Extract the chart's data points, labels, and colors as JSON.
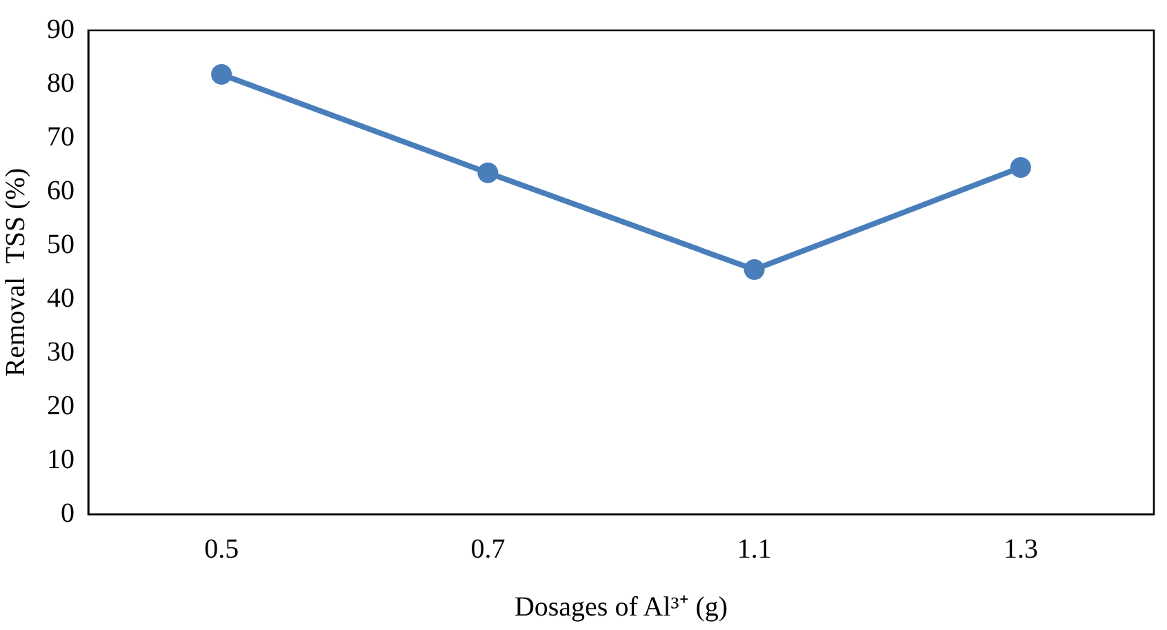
{
  "chart_data": {
    "type": "line",
    "xlabel": "Dosages of Al³⁺ (g)",
    "ylabel": "Removal  TSS (%)",
    "categories": [
      "0.5",
      "0.7",
      "1.1",
      "1.3"
    ],
    "series": [
      {
        "color": "#4a7ebb",
        "values": [
          81.8,
          63.5,
          45.5,
          64.5
        ]
      }
    ],
    "ylim": [
      0,
      90
    ],
    "yticks": [
      0,
      10,
      20,
      30,
      40,
      50,
      60,
      70,
      80,
      90
    ],
    "grid": false,
    "legend": false,
    "marker": "circle",
    "line_style": "solid"
  }
}
